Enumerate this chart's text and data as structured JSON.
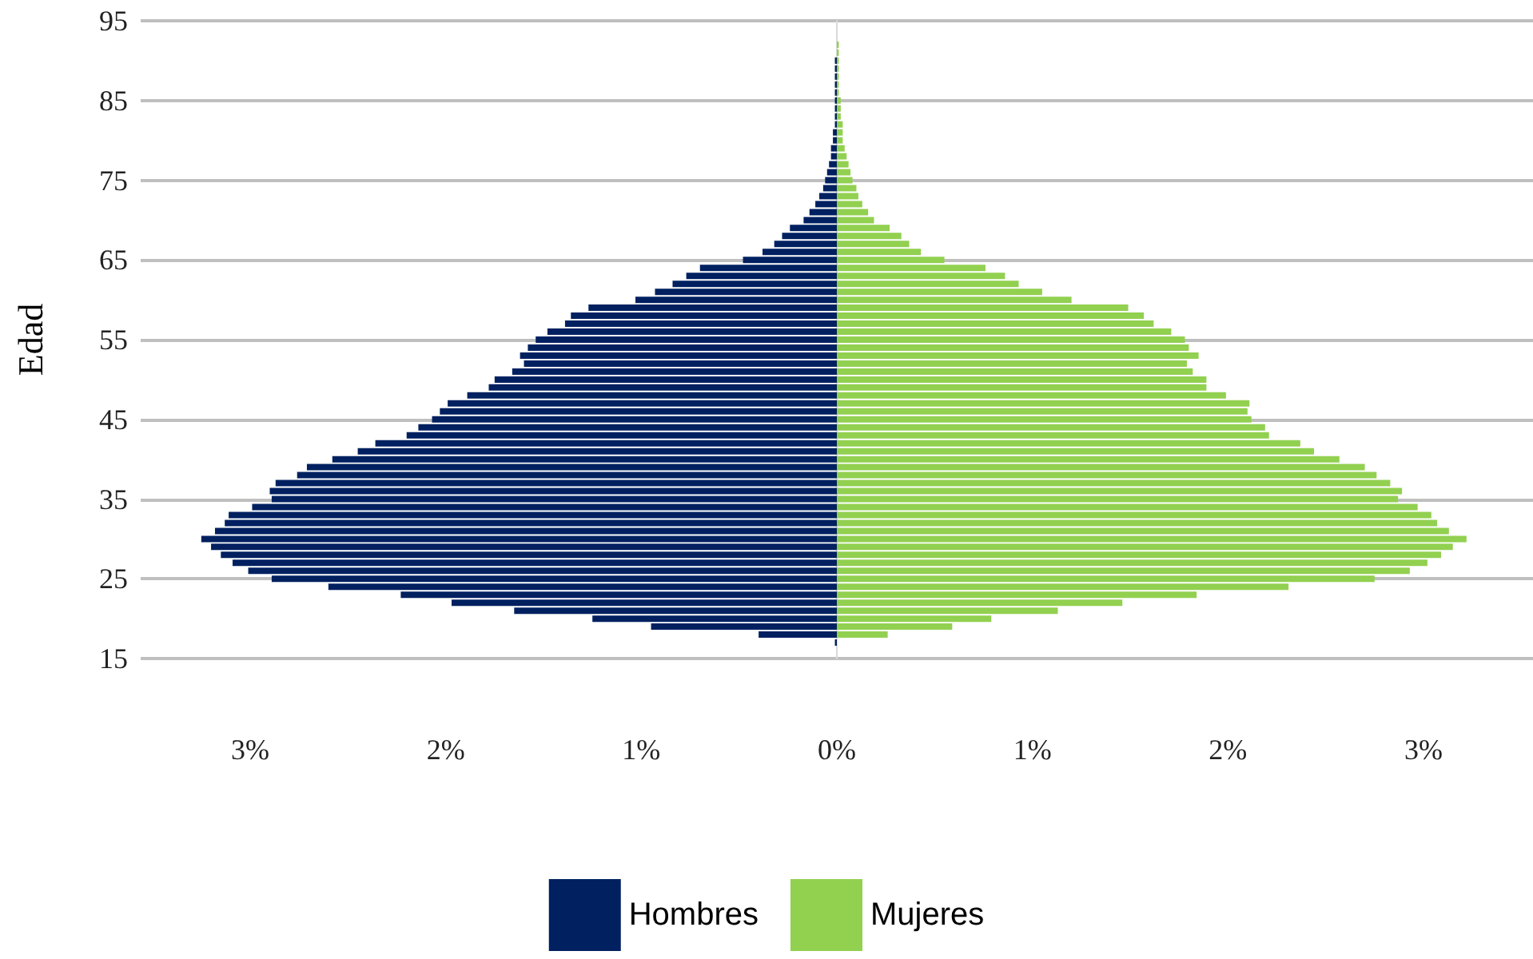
{
  "chart_data": {
    "type": "bar",
    "orientation": "horizontal",
    "ylabel": "Edad",
    "categories": [
      "95",
      null,
      null,
      null,
      null,
      null,
      null,
      null,
      null,
      null,
      "85",
      null,
      null,
      null,
      null,
      null,
      null,
      null,
      null,
      null,
      "75",
      null,
      null,
      null,
      null,
      null,
      null,
      null,
      null,
      null,
      "65",
      null,
      null,
      null,
      null,
      null,
      null,
      null,
      null,
      null,
      "55",
      null,
      null,
      null,
      null,
      null,
      null,
      null,
      null,
      null,
      "45",
      null,
      null,
      null,
      null,
      null,
      null,
      null,
      null,
      null,
      "35",
      null,
      null,
      null,
      null,
      null,
      null,
      null,
      null,
      null,
      "25",
      null,
      null,
      null,
      null,
      null,
      null,
      null,
      null,
      null,
      "15"
    ],
    "series": [
      {
        "name": "Hombres",
        "color": "#002060",
        "values": [
          null,
          null,
          null,
          null,
          null,
          -0.01,
          -0.01,
          -0.01,
          -0.01,
          -0.01,
          -0.01,
          -0.01,
          -0.01,
          -0.01,
          -0.02,
          -0.02,
          -0.03,
          -0.03,
          -0.04,
          -0.05,
          -0.06,
          -0.07,
          -0.09,
          -0.11,
          -0.14,
          -0.17,
          -0.24,
          -0.28,
          -0.32,
          -0.38,
          -0.48,
          -0.7,
          -0.77,
          -0.84,
          -0.93,
          -1.03,
          -1.27,
          -1.36,
          -1.39,
          -1.48,
          -1.54,
          -1.58,
          -1.62,
          -1.6,
          -1.66,
          -1.75,
          -1.78,
          -1.89,
          -1.99,
          -2.03,
          -2.07,
          -2.14,
          -2.2,
          -2.36,
          -2.45,
          -2.58,
          -2.71,
          -2.76,
          -2.87,
          -2.9,
          -2.89,
          -2.99,
          -3.11,
          -3.13,
          -3.18,
          -3.25,
          -3.2,
          -3.15,
          -3.09,
          -3.01,
          -2.89,
          -2.6,
          -2.23,
          -1.97,
          -1.65,
          -1.25,
          -0.95,
          -0.4,
          -0.01,
          null,
          null
        ]
      },
      {
        "name": "Mujeres",
        "color": "#92d050",
        "values": [
          null,
          null,
          null,
          0.01,
          0.01,
          0.01,
          0.01,
          0.01,
          0.01,
          0.01,
          0.02,
          0.02,
          0.02,
          0.03,
          0.03,
          0.03,
          0.04,
          0.05,
          0.06,
          0.07,
          0.08,
          0.1,
          0.11,
          0.13,
          0.16,
          0.19,
          0.27,
          0.33,
          0.37,
          0.43,
          0.55,
          0.76,
          0.86,
          0.93,
          1.05,
          1.2,
          1.49,
          1.57,
          1.62,
          1.71,
          1.78,
          1.8,
          1.85,
          1.79,
          1.82,
          1.89,
          1.89,
          1.99,
          2.11,
          2.1,
          2.12,
          2.19,
          2.21,
          2.37,
          2.44,
          2.57,
          2.7,
          2.76,
          2.83,
          2.89,
          2.87,
          2.97,
          3.04,
          3.07,
          3.13,
          3.22,
          3.15,
          3.09,
          3.02,
          2.93,
          2.75,
          2.31,
          1.84,
          1.46,
          1.13,
          0.79,
          0.59,
          0.26,
          null,
          null,
          null
        ]
      }
    ],
    "xlim": [
      -3.56,
      3.56
    ],
    "xticks": [
      {
        "value": -3,
        "label": "3%"
      },
      {
        "value": -2,
        "label": "2%"
      },
      {
        "value": -1,
        "label": "1%"
      },
      {
        "value": 0,
        "label": "0%"
      },
      {
        "value": 1,
        "label": "1%"
      },
      {
        "value": 2,
        "label": "2%"
      },
      {
        "value": 3,
        "label": "3%"
      }
    ],
    "stacked": true,
    "grid": "y",
    "legend": "bottom"
  }
}
